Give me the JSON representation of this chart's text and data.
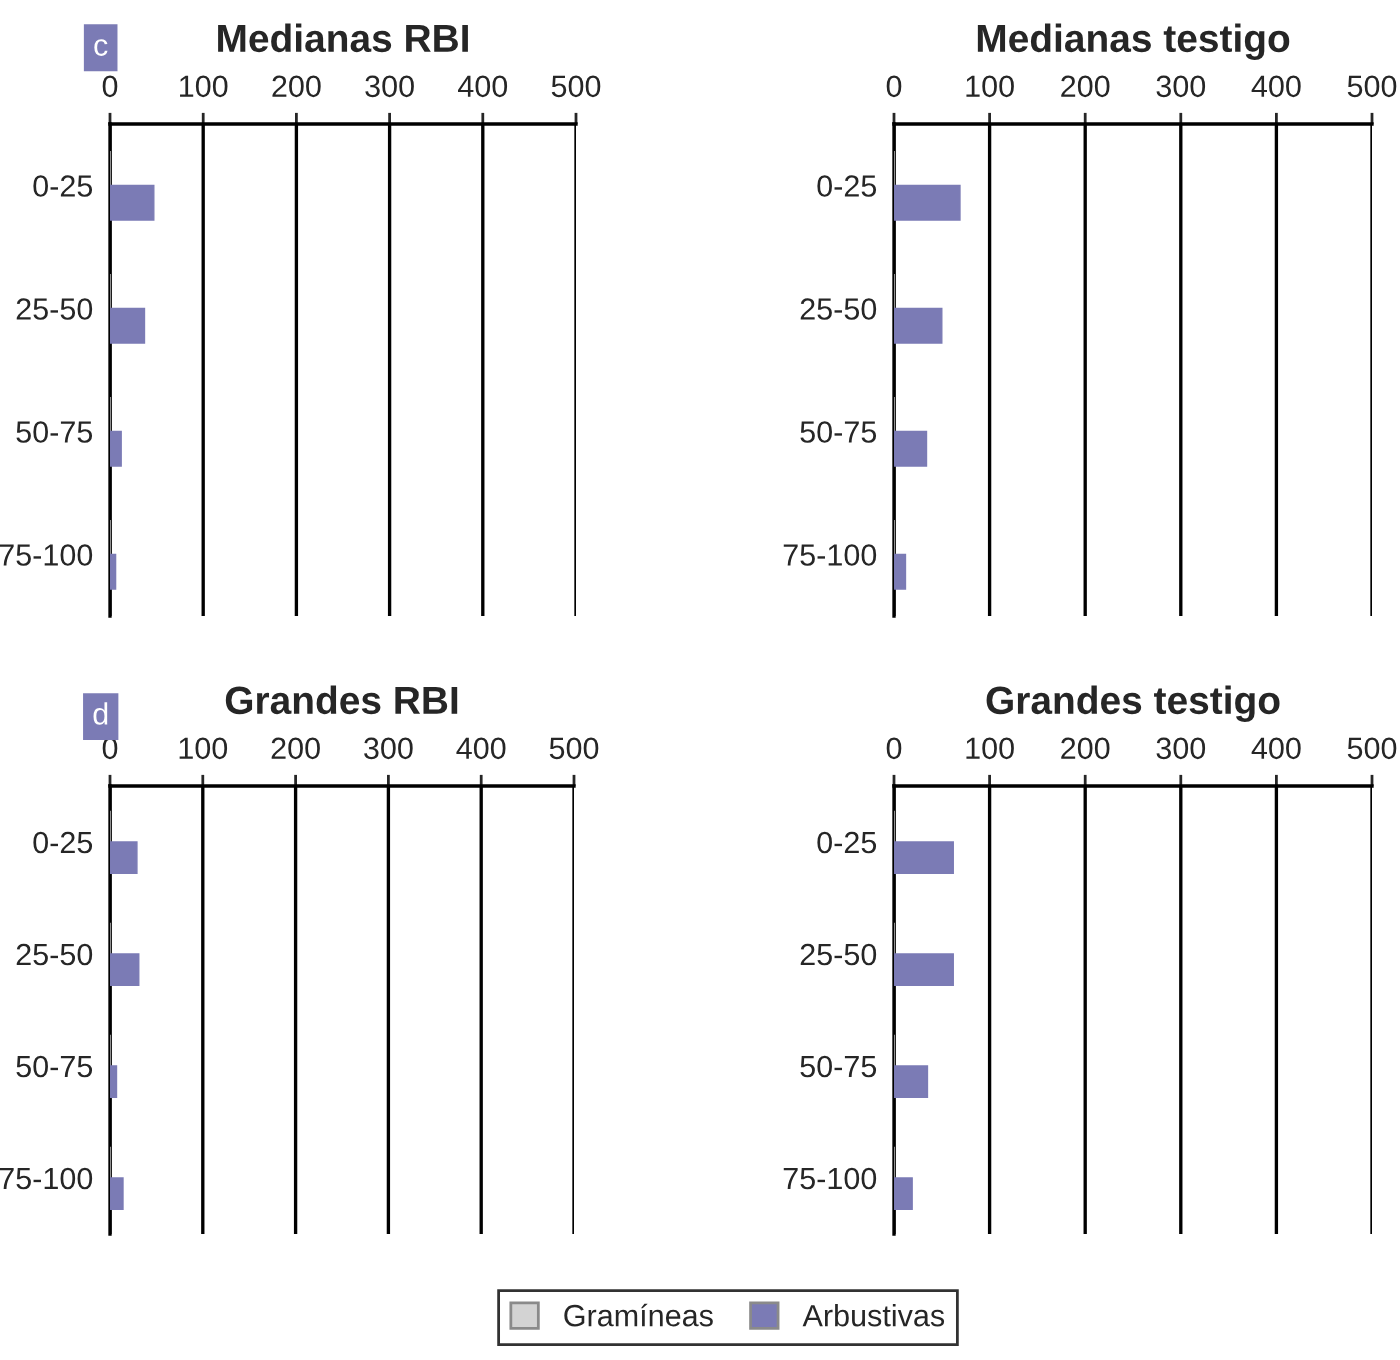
{
  "chart_data": [
    {
      "type": "bar",
      "orientation": "horizontal",
      "title": "Medianas RBI",
      "annotations": [
        "c"
      ],
      "categories": [
        "0-25",
        "25-50",
        "50-75",
        "75-100"
      ],
      "xlim": [
        0,
        500
      ],
      "xticks": [
        0,
        100,
        200,
        300,
        400,
        500
      ],
      "grid": "x",
      "legend": "bottom",
      "series": [
        {
          "name": "Gramíneas",
          "color": "#d3d3d3",
          "values": [
            0,
            0,
            0,
            0
          ]
        },
        {
          "name": "Arbustivas",
          "color": "#7b7bb5",
          "values": [
            47,
            37,
            12,
            6
          ]
        }
      ]
    },
    {
      "type": "bar",
      "orientation": "horizontal",
      "title": "Medianas testigo",
      "categories": [
        "0-25",
        "25-50",
        "50-75",
        "75-100"
      ],
      "xlim": [
        0,
        500
      ],
      "xticks": [
        0,
        100,
        200,
        300,
        400,
        500
      ],
      "grid": "x",
      "legend": "bottom",
      "series": [
        {
          "name": "Gramíneas",
          "color": "#d3d3d3",
          "values": [
            0,
            0,
            0,
            0
          ]
        },
        {
          "name": "Arbustivas",
          "color": "#7b7bb5",
          "values": [
            69,
            50,
            34,
            12
          ]
        }
      ]
    },
    {
      "type": "bar",
      "orientation": "horizontal",
      "title": "Grandes RBI",
      "annotations": [
        "d"
      ],
      "categories": [
        "0-25",
        "25-50",
        "50-75",
        "75-100"
      ],
      "xlim": [
        0,
        500
      ],
      "xticks": [
        0,
        100,
        200,
        300,
        400,
        500
      ],
      "grid": "x",
      "legend": "bottom",
      "series": [
        {
          "name": "Gramíneas",
          "color": "#d3d3d3",
          "values": [
            0,
            0,
            0,
            0
          ]
        },
        {
          "name": "Arbustivas",
          "color": "#7b7bb5",
          "values": [
            29,
            31,
            7,
            14
          ]
        }
      ]
    },
    {
      "type": "bar",
      "orientation": "horizontal",
      "title": "Grandes testigo",
      "categories": [
        "0-25",
        "25-50",
        "50-75",
        "75-100"
      ],
      "xlim": [
        0,
        500
      ],
      "xticks": [
        0,
        100,
        200,
        300,
        400,
        500
      ],
      "grid": "x",
      "legend": "bottom",
      "series": [
        {
          "name": "Gramíneas",
          "color": "#d3d3d3",
          "values": [
            0,
            0,
            0,
            0
          ]
        },
        {
          "name": "Arbustivas",
          "color": "#7b7bb5",
          "values": [
            62,
            62,
            35,
            19
          ]
        }
      ]
    }
  ]
}
